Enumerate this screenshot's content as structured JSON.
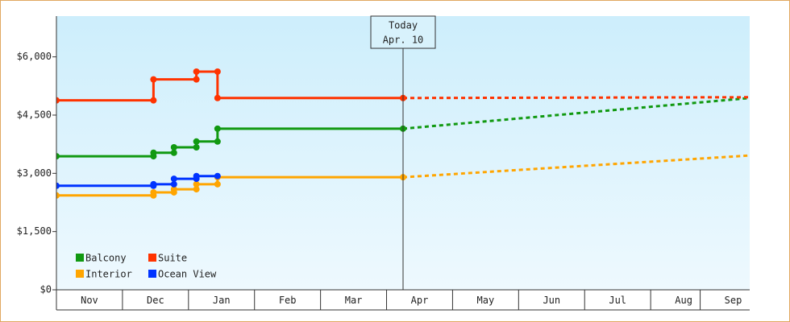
{
  "chart_data": {
    "type": "step-line",
    "xlim": [
      0,
      10.5
    ],
    "ylim": [
      0,
      7050
    ],
    "yticks": [
      {
        "value": 0,
        "label": "$0"
      },
      {
        "value": 1500,
        "label": "$1,500"
      },
      {
        "value": 3000,
        "label": "$3,000"
      },
      {
        "value": 4500,
        "label": "$4,500"
      },
      {
        "value": 6000,
        "label": "$6,000"
      }
    ],
    "xticks": [
      {
        "value": 0.5,
        "label": "Nov"
      },
      {
        "value": 1.5,
        "label": "Dec"
      },
      {
        "value": 2.5,
        "label": "Jan"
      },
      {
        "value": 3.5,
        "label": "Feb"
      },
      {
        "value": 4.5,
        "label": "Mar"
      },
      {
        "value": 5.5,
        "label": "Apr"
      },
      {
        "value": 6.5,
        "label": "May"
      },
      {
        "value": 7.5,
        "label": "Jun"
      },
      {
        "value": 8.5,
        "label": "Jul"
      },
      {
        "value": 9.5,
        "label": "Aug"
      },
      {
        "value": 10.25,
        "label": "Sep"
      }
    ],
    "today": {
      "x": 5.25,
      "title": "Today",
      "text": "Apr. 10"
    },
    "legend": "bottom-left",
    "series": [
      {
        "name": "Balcony",
        "color": "#119911",
        "x": [
          0,
          1.47,
          1.47,
          1.78,
          1.78,
          2.12,
          2.12,
          2.44,
          2.44,
          5.25,
          10.5
        ],
        "values": [
          3440,
          3440,
          3530,
          3530,
          3670,
          3670,
          3820,
          3820,
          4150,
          4150,
          4940
        ]
      },
      {
        "name": "Suite",
        "color": "#ff3300",
        "x": [
          0,
          1.47,
          1.47,
          2.12,
          2.12,
          2.44,
          2.44,
          5.25,
          10.5
        ],
        "values": [
          4880,
          4880,
          5420,
          5420,
          5620,
          5620,
          4940,
          4940,
          4960
        ]
      },
      {
        "name": "Interior",
        "color": "#ffa500",
        "x": [
          0,
          1.47,
          1.47,
          1.78,
          1.78,
          2.12,
          2.12,
          2.44,
          2.44,
          5.25,
          10.5
        ],
        "values": [
          2430,
          2430,
          2510,
          2510,
          2590,
          2590,
          2720,
          2720,
          2900,
          2900,
          3460
        ]
      },
      {
        "name": "Ocean View",
        "color": "#0033ff",
        "x": [
          0,
          1.47,
          1.47,
          1.78,
          1.78,
          2.12,
          2.12,
          2.44
        ],
        "values": [
          2680,
          2680,
          2720,
          2720,
          2860,
          2860,
          2930,
          2930
        ]
      }
    ]
  }
}
